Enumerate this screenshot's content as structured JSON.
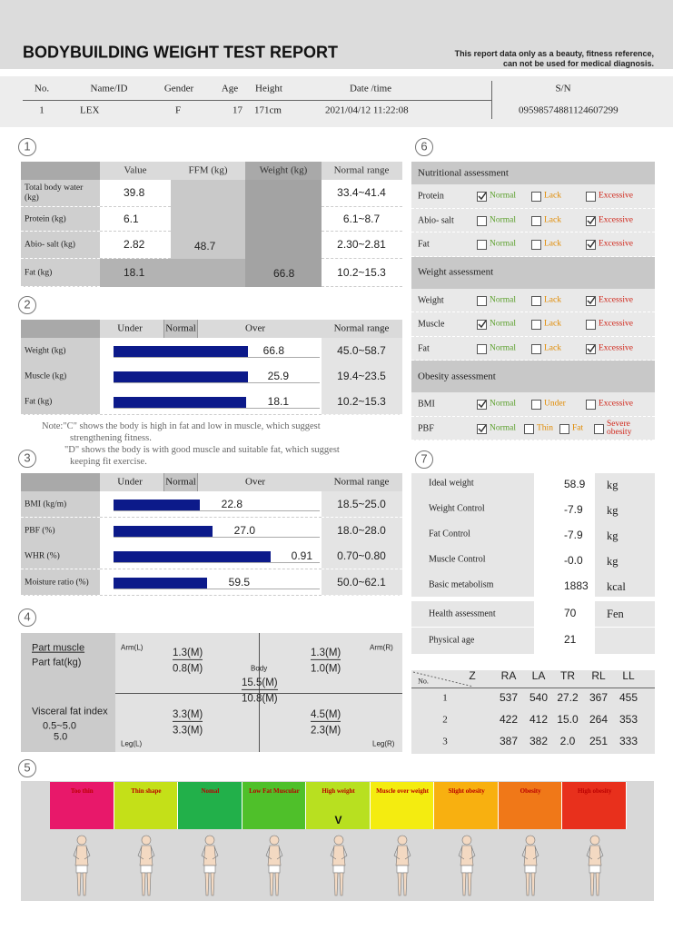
{
  "header": {
    "title": "BODYBUILDING WEIGHT TEST REPORT",
    "disclaimer": [
      "This report data only as a beauty, fitness reference,",
      "can not be used for medical diagnosis."
    ]
  },
  "info": {
    "columns": [
      "No.",
      "Name/ID",
      "Gender",
      "Age",
      "Height",
      "Date /time",
      "S/N"
    ],
    "values": [
      "1",
      "LEX",
      "F",
      "17",
      "171cm",
      "2021/04/12 11:22:08",
      "09598574881124607299"
    ]
  },
  "sections": [
    "1",
    "2",
    "3",
    "4",
    "5",
    "6",
    "7"
  ],
  "composition": {
    "columns": [
      "Value",
      "FFM (kg)",
      "Weight (kg)",
      "Normal range"
    ],
    "rows": [
      {
        "label": "Total body water (kg)",
        "value": 39.8,
        "range": "33.4~41.4"
      },
      {
        "label": "Protein (kg)",
        "value": 6.1,
        "range": "6.1~8.7"
      },
      {
        "label": "Abio- salt (kg)",
        "value": 2.82,
        "range": "2.30~2.81"
      },
      {
        "label": "Fat (kg)",
        "value": 18.1,
        "range": "10.2~15.3"
      }
    ],
    "ffm": 48.7,
    "weight": 66.8
  },
  "muscle_fat": {
    "columns": [
      "Under",
      "Normal",
      "Over",
      "Normal range"
    ],
    "rows": [
      {
        "label": "Weight (kg)",
        "value": 66.8,
        "range": "45.0~58.7"
      },
      {
        "label": "Muscle (kg)",
        "value": 25.9,
        "range": "19.4~23.5"
      },
      {
        "label": "Fat (kg)",
        "value": 18.1,
        "range": "10.2~15.3"
      }
    ],
    "note": [
      "Note:\"C\" shows the body is high in fat and low in muscle,  which suggest",
      "strengthening fitness.",
      "\"D\" shows the body is with good muscle and suitable fat,  which suggest",
      "keeping fit exercise."
    ]
  },
  "obesity": {
    "columns": [
      "Under",
      "Normal",
      "Over",
      "Normal range"
    ],
    "rows": [
      {
        "label": "BMI (kg/m)",
        "value": 22.8,
        "range": "18.5~25.0"
      },
      {
        "label": "PBF (%)",
        "value": "27.0",
        "range": "18.0~28.0"
      },
      {
        "label": "WHR (%)",
        "value": 0.91,
        "range": "0.70~0.80"
      },
      {
        "label": "Moisture ratio (%)",
        "value": 59.5,
        "range": "50.0~62.1"
      }
    ]
  },
  "segmental": {
    "muscle_label": "Part muscle",
    "fat_label": "Part fat(kg)",
    "visceral_label": "Visceral fat index",
    "visceral_range": "0.5~5.0",
    "visceral_value": "5.0",
    "parts": [
      {
        "name": "Arm(L)",
        "muscle": "1.3(M)",
        "fat": "0.8(M)"
      },
      {
        "name": "Arm(R)",
        "muscle": "1.3(M)",
        "fat": "1.0(M)"
      },
      {
        "name": "Body",
        "muscle": "15.5(M)",
        "fat": "10.8(M)"
      },
      {
        "name": "Leg(L)",
        "muscle": "3.3(M)",
        "fat": "3.3(M)"
      },
      {
        "name": "Leg(R)",
        "muscle": "4.5(M)",
        "fat": "2.3(M)"
      }
    ]
  },
  "body_type": {
    "categories": [
      {
        "label": "Too thin",
        "color": "#e8186a"
      },
      {
        "label": "Thin shape",
        "color": "#c4e018"
      },
      {
        "label": "Nomal",
        "color": "#22b04a"
      },
      {
        "label": "Low Fat Muscular",
        "color": "#4fc02a"
      },
      {
        "label": "High weight",
        "color": "#b8e020",
        "marker": "V"
      },
      {
        "label": "Muscle over weight",
        "color": "#f4ec10"
      },
      {
        "label": "Slight obesity",
        "color": "#f8b010"
      },
      {
        "label": "Obesity",
        "color": "#f07818"
      },
      {
        "label": "High obesity",
        "color": "#e8301c"
      }
    ]
  },
  "assessment": {
    "groups": [
      {
        "title": "Nutritional assessment",
        "rows": [
          {
            "label": "Protein",
            "options": [
              "Normal",
              "Lack",
              "Excessive"
            ],
            "checked": "Normal"
          },
          {
            "label": "Abio- salt",
            "options": [
              "Normal",
              "Lack",
              "Excessive"
            ],
            "checked": "Excessive"
          },
          {
            "label": "Fat",
            "options": [
              "Normal",
              "Lack",
              "Excessive"
            ],
            "checked": "Excessive"
          }
        ]
      },
      {
        "title": "Weight assessment",
        "rows": [
          {
            "label": "Weight",
            "options": [
              "Normal",
              "Lack",
              "Excessive"
            ],
            "checked": "Excessive"
          },
          {
            "label": "Muscle",
            "options": [
              "Normal",
              "Lack",
              "Excessive"
            ],
            "checked": "Normal"
          },
          {
            "label": "Fat",
            "options": [
              "Normal",
              "Lack",
              "Excessive"
            ],
            "checked": "Excessive"
          }
        ]
      },
      {
        "title": "Obesity assessment",
        "rows": [
          {
            "label": "BMI",
            "options": [
              "Normal",
              "Under",
              "Excessive"
            ],
            "checked": "Normal"
          },
          {
            "label": "PBF",
            "options": [
              "Normal",
              "Thin",
              "Fat",
              "Severe obesity"
            ],
            "checked": "Normal"
          }
        ]
      }
    ]
  },
  "control": {
    "rows": [
      {
        "label": "Ideal weight",
        "value": 58.9,
        "unit": "kg"
      },
      {
        "label": "Weight Control",
        "value": -7.9,
        "unit": "kg"
      },
      {
        "label": "Fat Control",
        "value": -7.9,
        "unit": "kg"
      },
      {
        "label": "Muscle Control",
        "value": "-0.0",
        "unit": "kg"
      },
      {
        "label": "Basic metabolism",
        "value": 1883,
        "unit": "kcal"
      }
    ],
    "extra": [
      {
        "label": "Health assessment",
        "value": 70,
        "unit": "Fen"
      },
      {
        "label": "Physical  age",
        "value": 21
      }
    ]
  },
  "impedance": {
    "columns": [
      "No.",
      "Z",
      "RA",
      "LA",
      "TR",
      "RL",
      "LL"
    ],
    "rows": [
      [
        1,
        537,
        540,
        27.2,
        367,
        455
      ],
      [
        2,
        422,
        412,
        "15.0",
        264,
        353
      ],
      [
        3,
        387,
        382,
        "2.0",
        251,
        333
      ]
    ]
  }
}
